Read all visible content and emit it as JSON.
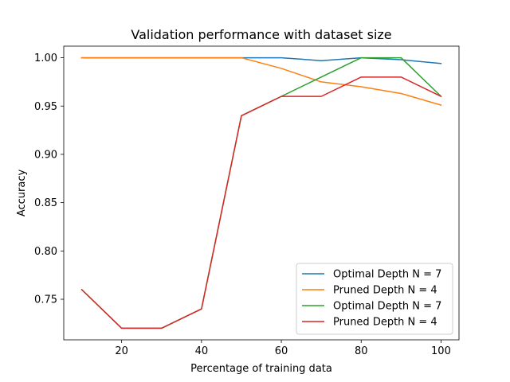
{
  "chart_data": {
    "type": "line",
    "title": "Validation performance with dataset size",
    "xlabel": "Percentage of training data",
    "ylabel": "Accuracy",
    "xlim": [
      5.5,
      104.5
    ],
    "ylim": [
      0.708,
      1.012
    ],
    "x": [
      10,
      20,
      30,
      40,
      50,
      60,
      70,
      80,
      90,
      100
    ],
    "xticks": [
      20,
      40,
      60,
      80,
      100
    ],
    "xtick_labels": [
      "20",
      "40",
      "60",
      "80",
      "100"
    ],
    "yticks": [
      0.75,
      0.8,
      0.85,
      0.9,
      0.95,
      1.0
    ],
    "ytick_labels": [
      "0.75",
      "0.80",
      "0.85",
      "0.90",
      "0.95",
      "1.00"
    ],
    "grid": false,
    "legend_position": "lower-right",
    "series": [
      {
        "name": "Optimal Depth N = 7",
        "color": "#1f77b4",
        "values": [
          1.0,
          1.0,
          1.0,
          1.0,
          1.0,
          1.0,
          0.997,
          1.0,
          0.998,
          0.994
        ]
      },
      {
        "name": "Pruned Depth N = 4",
        "color": "#ff7f0e",
        "values": [
          1.0,
          1.0,
          1.0,
          1.0,
          1.0,
          0.989,
          0.975,
          0.97,
          0.963,
          0.951
        ]
      },
      {
        "name": "Optimal Depth N = 7",
        "color": "#2ca02c",
        "values": [
          0.76,
          0.72,
          0.72,
          0.74,
          0.94,
          0.96,
          0.98,
          1.0,
          1.0,
          0.96
        ]
      },
      {
        "name": "Pruned Depth N = 4",
        "color": "#d62728",
        "values": [
          0.76,
          0.72,
          0.72,
          0.74,
          0.94,
          0.96,
          0.96,
          0.98,
          0.98,
          0.96
        ]
      }
    ]
  }
}
